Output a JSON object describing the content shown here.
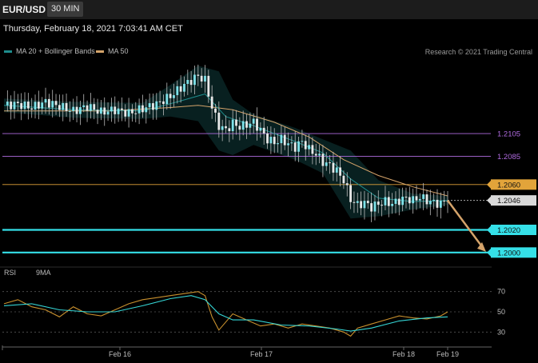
{
  "header": {
    "symbol": "EUR/USD",
    "timeframe": "30 MIN",
    "datetime": "Thursday, February 18, 2021 7:03:41 AM CET"
  },
  "legend": {
    "ma20": {
      "label": "MA 20 + Bollinger Bands",
      "color": "#1e8c8c"
    },
    "ma50": {
      "label": "MA 50",
      "color": "#d4a36a"
    },
    "credit": "Research © 2021 Trading Central"
  },
  "rsi_legend": {
    "rsi": {
      "label": "RSI",
      "color": "#c8902e"
    },
    "ma9": {
      "label": "9MA",
      "color": "#35d6d6"
    }
  },
  "chart_data": [
    {
      "type": "candlestick",
      "title": "EUR/USD",
      "ylim": [
        1.199,
        1.217
      ],
      "x_tick_labels": [
        "Feb 16",
        "Feb 17",
        "Feb 18",
        "Feb 19"
      ],
      "levels": [
        {
          "value": 1.2105,
          "label": "1.2105",
          "color": "#b06be0",
          "style": "thin"
        },
        {
          "value": 1.2085,
          "label": "1.2085",
          "color": "#b06be0",
          "style": "thin"
        },
        {
          "value": 1.206,
          "label": "1.2060",
          "color": "#e2a43a",
          "style": "thin"
        },
        {
          "value": 1.2046,
          "label": "1.2046",
          "color": "#d9d9d9",
          "style": "current"
        },
        {
          "value": 1.202,
          "label": "1.2020",
          "color": "#35e0e8",
          "style": "thick"
        },
        {
          "value": 1.2,
          "label": "1.2000",
          "color": "#35e0e8",
          "style": "thick"
        }
      ],
      "forecast_arrow": {
        "from": 1.2046,
        "to": 1.2,
        "color": "#d4a36a"
      },
      "close_path": [
        [
          0,
          1.213
        ],
        [
          4,
          1.2131
        ],
        [
          8,
          1.2128
        ],
        [
          12,
          1.2133
        ],
        [
          16,
          1.2129
        ],
        [
          20,
          1.2125
        ],
        [
          24,
          1.2129
        ],
        [
          28,
          1.2124
        ],
        [
          32,
          1.2126
        ],
        [
          36,
          1.2123
        ],
        [
          40,
          1.2127
        ],
        [
          44,
          1.2131
        ],
        [
          48,
          1.2138
        ],
        [
          52,
          1.2148
        ],
        [
          56,
          1.2156
        ],
        [
          58,
          1.2152
        ],
        [
          60,
          1.2128
        ],
        [
          62,
          1.2112
        ],
        [
          64,
          1.2108
        ],
        [
          66,
          1.2114
        ],
        [
          68,
          1.2111
        ],
        [
          70,
          1.2113
        ],
        [
          72,
          1.2115
        ],
        [
          74,
          1.2108
        ],
        [
          76,
          1.21
        ],
        [
          78,
          1.2097
        ],
        [
          80,
          1.21
        ],
        [
          82,
          1.2096
        ],
        [
          84,
          1.2093
        ],
        [
          86,
          1.2098
        ],
        [
          88,
          1.2091
        ],
        [
          90,
          1.2087
        ],
        [
          92,
          1.208
        ],
        [
          94,
          1.2077
        ],
        [
          96,
          1.2072
        ],
        [
          98,
          1.2064
        ],
        [
          100,
          1.2047
        ],
        [
          102,
          1.2042
        ],
        [
          104,
          1.2044
        ],
        [
          106,
          1.204
        ],
        [
          108,
          1.2043
        ],
        [
          110,
          1.2045
        ],
        [
          112,
          1.2043
        ],
        [
          114,
          1.2046
        ],
        [
          116,
          1.2048
        ],
        [
          118,
          1.2046
        ],
        [
          120,
          1.2049
        ],
        [
          122,
          1.2046
        ],
        [
          124,
          1.2044
        ],
        [
          126,
          1.2043
        ],
        [
          128,
          1.2048
        ]
      ],
      "ma20_path": [
        [
          0,
          1.213
        ],
        [
          20,
          1.2126
        ],
        [
          40,
          1.2125
        ],
        [
          50,
          1.2133
        ],
        [
          58,
          1.214
        ],
        [
          64,
          1.212
        ],
        [
          72,
          1.2112
        ],
        [
          84,
          1.2098
        ],
        [
          92,
          1.2088
        ],
        [
          100,
          1.2065
        ],
        [
          108,
          1.2048
        ],
        [
          118,
          1.2045
        ],
        [
          128,
          1.2046
        ]
      ],
      "ma50_path": [
        [
          0,
          1.2125
        ],
        [
          30,
          1.2125
        ],
        [
          48,
          1.2128
        ],
        [
          56,
          1.213
        ],
        [
          66,
          1.2126
        ],
        [
          78,
          1.2115
        ],
        [
          88,
          1.2102
        ],
        [
          98,
          1.2082
        ],
        [
          108,
          1.2068
        ],
        [
          118,
          1.2058
        ],
        [
          128,
          1.205
        ]
      ],
      "bollinger_upper": [
        [
          0,
          1.2136
        ],
        [
          20,
          1.2133
        ],
        [
          40,
          1.2132
        ],
        [
          48,
          1.2148
        ],
        [
          56,
          1.2165
        ],
        [
          62,
          1.216
        ],
        [
          66,
          1.2135
        ],
        [
          72,
          1.2122
        ],
        [
          84,
          1.211
        ],
        [
          92,
          1.21
        ],
        [
          100,
          1.209
        ],
        [
          108,
          1.2064
        ],
        [
          118,
          1.2052
        ],
        [
          128,
          1.205
        ]
      ],
      "bollinger_lower": [
        [
          0,
          1.2124
        ],
        [
          20,
          1.2119
        ],
        [
          40,
          1.2118
        ],
        [
          48,
          1.212
        ],
        [
          56,
          1.2116
        ],
        [
          62,
          1.209
        ],
        [
          66,
          1.2086
        ],
        [
          72,
          1.2095
        ],
        [
          84,
          1.2082
        ],
        [
          92,
          1.207
        ],
        [
          100,
          1.203
        ],
        [
          108,
          1.2032
        ],
        [
          118,
          1.2038
        ],
        [
          128,
          1.2042
        ]
      ]
    },
    {
      "type": "line",
      "title": "RSI",
      "ylim": [
        20,
        80
      ],
      "y_tick_labels": [
        "70",
        "50",
        "30"
      ],
      "series": [
        {
          "name": "RSI",
          "color": "#c8902e",
          "points": [
            [
              0,
              58
            ],
            [
              4,
              62
            ],
            [
              8,
              55
            ],
            [
              12,
              52
            ],
            [
              16,
              45
            ],
            [
              20,
              55
            ],
            [
              24,
              48
            ],
            [
              28,
              46
            ],
            [
              32,
              52
            ],
            [
              36,
              58
            ],
            [
              40,
              62
            ],
            [
              44,
              64
            ],
            [
              48,
              66
            ],
            [
              52,
              68
            ],
            [
              56,
              70
            ],
            [
              58,
              66
            ],
            [
              60,
              45
            ],
            [
              62,
              32
            ],
            [
              64,
              40
            ],
            [
              66,
              48
            ],
            [
              70,
              42
            ],
            [
              74,
              36
            ],
            [
              78,
              38
            ],
            [
              82,
              34
            ],
            [
              86,
              38
            ],
            [
              90,
              36
            ],
            [
              94,
              34
            ],
            [
              98,
              30
            ],
            [
              100,
              26
            ],
            [
              102,
              34
            ],
            [
              106,
              38
            ],
            [
              110,
              42
            ],
            [
              114,
              46
            ],
            [
              118,
              44
            ],
            [
              122,
              43
            ],
            [
              126,
              46
            ],
            [
              128,
              50
            ]
          ]
        },
        {
          "name": "9MA",
          "color": "#35d6d6",
          "points": [
            [
              0,
              56
            ],
            [
              8,
              58
            ],
            [
              16,
              52
            ],
            [
              24,
              50
            ],
            [
              32,
              50
            ],
            [
              40,
              56
            ],
            [
              48,
              63
            ],
            [
              54,
              66
            ],
            [
              58,
              62
            ],
            [
              62,
              48
            ],
            [
              66,
              42
            ],
            [
              72,
              42
            ],
            [
              80,
              37
            ],
            [
              88,
              36
            ],
            [
              96,
              33
            ],
            [
              100,
              31
            ],
            [
              106,
              34
            ],
            [
              114,
              41
            ],
            [
              122,
              44
            ],
            [
              128,
              45
            ]
          ]
        }
      ]
    }
  ]
}
